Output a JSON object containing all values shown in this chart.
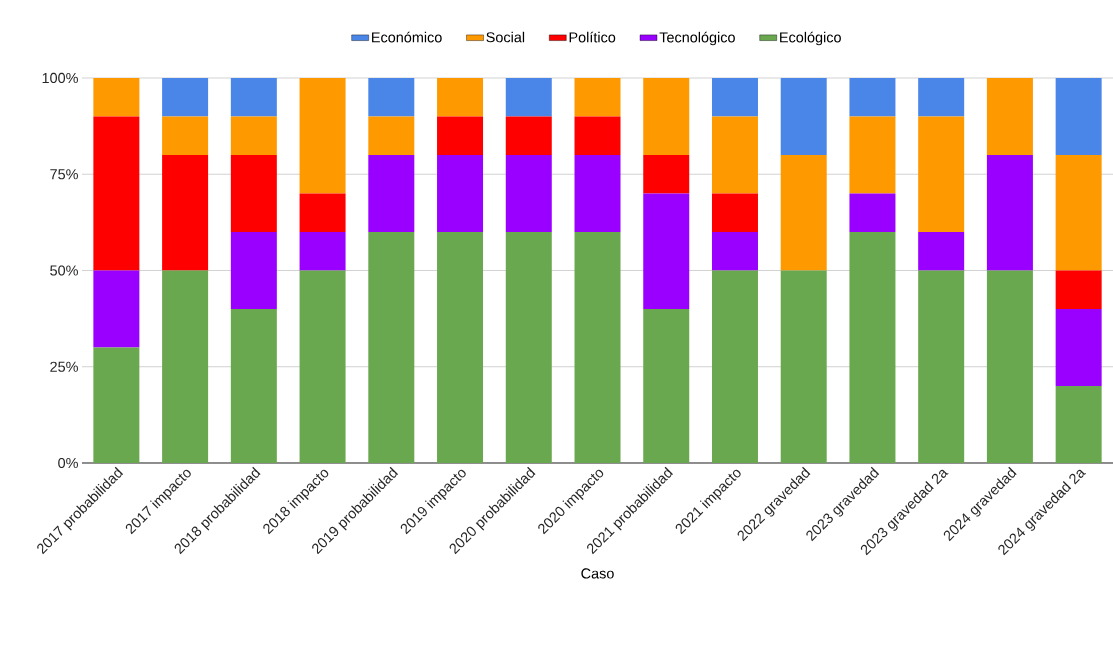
{
  "chart_data": {
    "type": "bar",
    "stacked": true,
    "xlabel": "Caso",
    "categories": [
      "2017 probabilidad",
      "2017 impacto",
      "2018 probabilidad",
      "2018 impacto",
      "2019 probabilidad",
      "2019 impacto",
      "2020 probabilidad",
      "2020 impacto",
      "2021 probabilidad",
      "2021 impacto",
      "2022 gravedad",
      "2023 gravedad",
      "2023 gravedad 2a",
      "2024 gravedad",
      "2024 gravedad 2a"
    ],
    "series": [
      {
        "name": "Ecológico",
        "color": "#6aa84f",
        "values": [
          30,
          50,
          40,
          50,
          60,
          60,
          60,
          60,
          40,
          50,
          50,
          60,
          50,
          50,
          20
        ]
      },
      {
        "name": "Tecnológico",
        "color": "#9900ff",
        "values": [
          20,
          0,
          20,
          10,
          20,
          20,
          20,
          20,
          30,
          10,
          0,
          10,
          10,
          30,
          20
        ]
      },
      {
        "name": "Político",
        "color": "#ff0000",
        "values": [
          40,
          30,
          20,
          10,
          0,
          10,
          10,
          10,
          10,
          10,
          0,
          0,
          0,
          0,
          10
        ]
      },
      {
        "name": "Social",
        "color": "#ff9900",
        "values": [
          10,
          10,
          10,
          30,
          10,
          10,
          0,
          10,
          20,
          20,
          30,
          20,
          30,
          20,
          30
        ]
      },
      {
        "name": "Económico",
        "color": "#4a86e8",
        "values": [
          0,
          10,
          10,
          0,
          10,
          0,
          10,
          0,
          0,
          10,
          20,
          10,
          10,
          0,
          20
        ]
      }
    ],
    "ylim": [
      0,
      100
    ],
    "yticks": [
      {
        "value": 0,
        "label": "0%"
      },
      {
        "value": 25,
        "label": "25%"
      },
      {
        "value": 50,
        "label": "50%"
      },
      {
        "value": 75,
        "label": "75%"
      },
      {
        "value": 100,
        "label": "100%"
      }
    ],
    "grid": "y",
    "legend": "top"
  }
}
